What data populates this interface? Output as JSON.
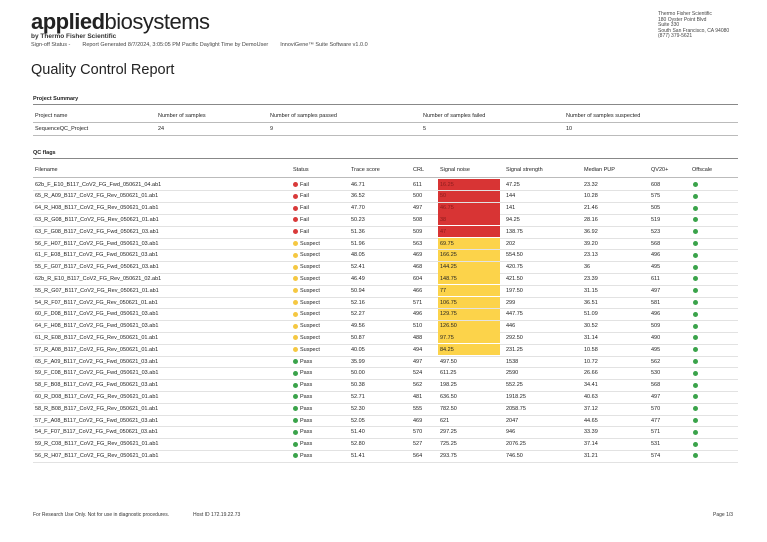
{
  "header": {
    "logo_bold": "applied",
    "logo_light": "biosystems",
    "logo_sub": "by Thermo Fisher Scientific",
    "meta": [
      "Sign-off Status -",
      "Report Generated 8/7/2024, 3:05:05 PM Pacific Daylight Time by DemoUser",
      "InnoviGene™ Suite Software v1.0.0"
    ],
    "address": [
      "Thermo Fisher Scientific",
      "180 Oyster Point Blvd",
      "Suite 330",
      "South San Francisco, CA 94080",
      "(877) 379-5621"
    ]
  },
  "title": "Quality Control Report",
  "project_summary": {
    "heading": "Project Summary",
    "columns": [
      "Project name",
      "Number of samples",
      "Number of samples passed",
      "Number of samples failed",
      "Number of samples suspected"
    ],
    "row": [
      "SequenceQC_Project",
      "24",
      "9",
      "5",
      "10"
    ]
  },
  "qc_flags": {
    "heading": "QC flags",
    "columns": [
      "Filename",
      "Status",
      "Trace score",
      "CRL",
      "Signal noise",
      "Signal strength",
      "Median PUP",
      "QV20+",
      "Offscale"
    ],
    "rows": [
      [
        "62b_F_E10_B117_CoV2_FG_Fwd_050621_04.ab1",
        "Fail",
        "46.71",
        "611",
        "16.25",
        "47.25",
        "23.32",
        "608"
      ],
      [
        "65_R_A09_B117_CoV2_FG_Rev_050621_01.ab1",
        "Fail",
        "36.52",
        "500",
        "50",
        "144",
        "10.28",
        "575"
      ],
      [
        "64_R_H08_B117_CoV2_FG_Rev_050621_01.ab1",
        "Fail",
        "47.70",
        "497",
        "46.75",
        "141",
        "21.46",
        "505"
      ],
      [
        "63_R_G08_B117_CoV2_FG_Rev_050621_01.ab1",
        "Fail",
        "50.23",
        "508",
        "38",
        "94.25",
        "28.16",
        "519"
      ],
      [
        "63_F_G08_B117_CoV2_FG_Fwd_050621_03.ab1",
        "Fail",
        "51.36",
        "509",
        "47",
        "138.75",
        "36.92",
        "523"
      ],
      [
        "56_F_H07_B117_CoV2_FG_Fwd_050621_03.ab1",
        "Suspect",
        "51.96",
        "563",
        "69.75",
        "202",
        "39.20",
        "568"
      ],
      [
        "61_F_E08_B117_CoV2_FG_Fwd_050621_03.ab1",
        "Suspect",
        "48.05",
        "469",
        "166.25",
        "554.50",
        "23.13",
        "496"
      ],
      [
        "55_F_G07_B117_CoV2_FG_Fwd_050621_03.ab1",
        "Suspect",
        "52.41",
        "468",
        "144.25",
        "420.75",
        "36",
        "495"
      ],
      [
        "62b_R_E10_B117_CoV2_FG_Rev_050621_02.ab1",
        "Suspect",
        "46.49",
        "604",
        "148.75",
        "421.50",
        "23.39",
        "611"
      ],
      [
        "55_R_G07_B117_CoV2_FG_Rev_050621_01.ab1",
        "Suspect",
        "50.94",
        "466",
        "77",
        "197.50",
        "31.15",
        "497"
      ],
      [
        "54_R_F07_B117_CoV2_FG_Rev_050621_01.ab1",
        "Suspect",
        "52.16",
        "571",
        "106.75",
        "299",
        "36.51",
        "581"
      ],
      [
        "60_F_D08_B117_CoV2_FG_Fwd_050621_03.ab1",
        "Suspect",
        "52.27",
        "496",
        "129.75",
        "447.75",
        "51.09",
        "496"
      ],
      [
        "64_F_H08_B117_CoV2_FG_Fwd_050621_03.ab1",
        "Suspect",
        "49.56",
        "510",
        "126.50",
        "446",
        "30.52",
        "509"
      ],
      [
        "61_R_E08_B117_CoV2_FG_Rev_050621_01.ab1",
        "Suspect",
        "50.87",
        "488",
        "97.75",
        "292.50",
        "31.14",
        "490"
      ],
      [
        "57_R_A08_B117_CoV2_FG_Rev_050621_01.ab1",
        "Suspect",
        "40.05",
        "494",
        "84.25",
        "231.25",
        "10.58",
        "495"
      ],
      [
        "65_F_A09_B117_CoV2_FG_Fwd_050621_03.ab1",
        "Pass",
        "35.99",
        "497",
        "497.50",
        "1538",
        "10.72",
        "562"
      ],
      [
        "59_F_C08_B117_CoV2_FG_Fwd_050621_03.ab1",
        "Pass",
        "50.00",
        "524",
        "611.25",
        "2590",
        "26.66",
        "530"
      ],
      [
        "58_F_B08_B117_CoV2_FG_Fwd_050621_03.ab1",
        "Pass",
        "50.38",
        "562",
        "198.25",
        "552.25",
        "34.41",
        "568"
      ],
      [
        "60_R_D08_B117_CoV2_FG_Rev_050621_01.ab1",
        "Pass",
        "52.71",
        "481",
        "636.50",
        "1918.25",
        "40.63",
        "497"
      ],
      [
        "58_R_B08_B117_CoV2_FG_Rev_050621_01.ab1",
        "Pass",
        "52.30",
        "555",
        "782.50",
        "2058.75",
        "37.12",
        "570"
      ],
      [
        "57_F_A08_B117_CoV2_FG_Fwd_050621_03.ab1",
        "Pass",
        "52.05",
        "469",
        "621",
        "2047",
        "44.65",
        "477"
      ],
      [
        "54_F_F07_B117_CoV2_FG_Fwd_050621_03.ab1",
        "Pass",
        "51.40",
        "570",
        "297.25",
        "946",
        "33.39",
        "571"
      ],
      [
        "59_R_C08_B117_CoV2_FG_Rev_050621_01.ab1",
        "Pass",
        "52.80",
        "527",
        "725.25",
        "2076.25",
        "37.14",
        "531"
      ],
      [
        "56_R_H07_B117_CoV2_FG_Rev_050621_01.ab1",
        "Pass",
        "51.41",
        "564",
        "293.75",
        "746.50",
        "31.21",
        "574"
      ]
    ]
  },
  "footer": {
    "disclaimer": "For Research Use Only.  Not for use in diagnostic procedures.",
    "host": "Host ID  172.19.22.73",
    "page": "Page 1/3"
  }
}
